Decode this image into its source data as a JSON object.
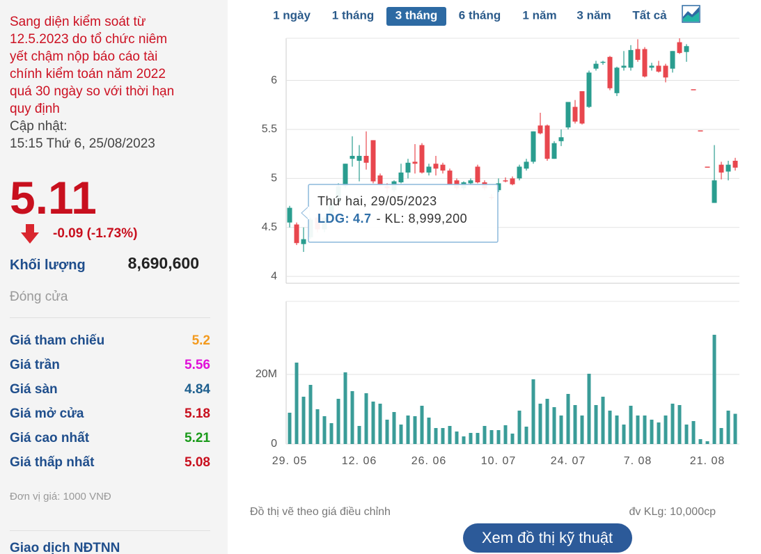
{
  "sidebar": {
    "notice_lines": [
      "Sang diện kiểm soát từ",
      "12.5.2023 do tổ chức niêm",
      "yết chậm nộp báo cáo tài",
      "chính kiểm toán năm 2022",
      "quá 30 ngày so với thời hạn",
      "quy định"
    ],
    "update_label": "Cập nhật:",
    "update_time": "15:15 Thứ 6, 25/08/2023",
    "price": "5.11",
    "change": "-0.09 (-1.73%)",
    "volume_label": "Khối lượng",
    "volume": "8,690,600",
    "status": "Đóng cửa",
    "stats": [
      {
        "label": "Giá tham chiếu",
        "value": "5.2",
        "color": "#f39a1e"
      },
      {
        "label": "Giá trần",
        "value": "5.56",
        "color": "#e010d8"
      },
      {
        "label": "Giá sàn",
        "value": "4.84",
        "color": "#1e5f8e"
      },
      {
        "label": "Giá mở cửa",
        "value": "5.18",
        "color": "#c8101e"
      },
      {
        "label": "Giá cao nhất",
        "value": "5.21",
        "color": "#1a9a1a"
      },
      {
        "label": "Giá thấp nhất",
        "value": "5.08",
        "color": "#c8101e"
      }
    ],
    "unit_note": "Đơn vị giá: 1000 VNĐ",
    "section": "Giao dịch NĐTNN"
  },
  "range_tabs": [
    "1 ngày",
    "1 tháng",
    "3 tháng",
    "6 tháng",
    "1 năm",
    "3 năm",
    "Tất cả"
  ],
  "active_tab": 2,
  "tooltip": {
    "date": "Thứ hai, 29/05/2023",
    "symbol_label": "LDG:",
    "volume_label": "- KL: 8,999,200"
  },
  "notes": {
    "left": "Đồ thị vẽ theo giá điều chỉnh",
    "right": "đv KLg: 10,000cp"
  },
  "button": "Xem đồ thị kỹ thuật",
  "chart_data": [
    {
      "type": "candlestick",
      "up_color": "#2a9d8f",
      "down_color": "#e8474e",
      "ylim": [
        3.93,
        6.43
      ],
      "yticks": [
        4,
        4.5,
        5,
        5.5,
        6
      ],
      "grid": true,
      "open": [
        4.55,
        4.53,
        4.33,
        4.4,
        4.6,
        4.48,
        4.6,
        4.75,
        4.92,
        5.2,
        5.18,
        5.23,
        5.39,
        5.03,
        4.92,
        4.88,
        4.96,
        5.06,
        5.17,
        5.34,
        5.06,
        5.15,
        5.14,
        5.08,
        4.98,
        4.9,
        4.95,
        5.12,
        4.96,
        4.81,
        4.88,
        4.98,
        5.0,
        5.0,
        5.1,
        5.17,
        5.54,
        5.54,
        5.2,
        5.38,
        5.52,
        5.73,
        5.89,
        5.73,
        6.12,
        6.18,
        6.24,
        5.87,
        6.13,
        6.13,
        6.32,
        6.32,
        6.13,
        6.15,
        6.15,
        6.12,
        6.39,
        6.29,
        5.91,
        5.49,
        5.12,
        4.75,
        5.14,
        5.07,
        5.18
      ],
      "high": [
        4.72,
        4.55,
        4.5,
        4.6,
        4.65,
        4.62,
        4.8,
        4.95,
        5.15,
        5.43,
        5.34,
        5.48,
        5.39,
        5.05,
        4.95,
        4.98,
        5.15,
        5.2,
        5.35,
        5.36,
        5.15,
        5.23,
        5.16,
        5.1,
        5.0,
        4.97,
        5.0,
        5.14,
        4.98,
        4.84,
        5.0,
        5.01,
        5.02,
        5.14,
        5.2,
        5.48,
        5.67,
        5.55,
        5.38,
        5.5,
        5.78,
        5.8,
        5.89,
        6.1,
        6.2,
        6.2,
        6.25,
        6.14,
        6.3,
        6.36,
        6.42,
        6.34,
        6.18,
        6.2,
        6.17,
        6.3,
        6.43,
        6.37,
        5.91,
        5.49,
        5.12,
        5.34,
        5.17,
        5.18,
        5.21
      ],
      "low": [
        4.5,
        4.32,
        4.25,
        4.38,
        4.45,
        4.45,
        4.55,
        4.7,
        4.9,
        5.12,
        4.97,
        5.09,
        4.95,
        4.92,
        4.85,
        4.86,
        4.95,
        5.0,
        5.05,
        5.05,
        5.03,
        5.03,
        5.05,
        4.93,
        4.88,
        4.88,
        4.93,
        4.95,
        4.88,
        4.78,
        4.86,
        4.96,
        4.93,
        4.98,
        5.08,
        5.15,
        5.45,
        5.18,
        5.2,
        5.33,
        5.5,
        5.56,
        5.55,
        5.72,
        6.1,
        6.16,
        5.9,
        5.84,
        6.1,
        6.1,
        6.19,
        6.03,
        6.1,
        6.08,
        5.98,
        6.08,
        6.27,
        6.19,
        5.91,
        5.49,
        5.12,
        4.75,
        4.99,
        4.98,
        5.08
      ],
      "close": [
        4.7,
        4.34,
        4.38,
        4.58,
        4.48,
        4.6,
        4.75,
        4.92,
        5.15,
        5.23,
        5.23,
        5.16,
        4.97,
        4.94,
        4.9,
        4.97,
        5.06,
        5.16,
        5.15,
        5.06,
        5.12,
        5.1,
        5.08,
        4.94,
        4.9,
        4.96,
        4.98,
        4.96,
        4.9,
        4.81,
        4.95,
        4.98,
        4.94,
        5.12,
        5.17,
        5.48,
        5.46,
        5.2,
        5.36,
        5.42,
        5.78,
        5.58,
        5.56,
        6.08,
        6.17,
        6.19,
        5.92,
        6.13,
        6.15,
        6.31,
        6.21,
        6.04,
        6.15,
        6.09,
        6.03,
        6.3,
        6.28,
        6.35,
        5.91,
        5.49,
        5.12,
        4.98,
        5.06,
        5.14,
        5.11
      ]
    },
    {
      "type": "bar",
      "color": "#3a9c98",
      "ylim": [
        0,
        41000000
      ],
      "yticks": [
        0,
        {
          "value": 20000000,
          "label": "20M"
        }
      ],
      "grid": true,
      "categories": [
        "29. 05",
        null,
        null,
        null,
        null,
        null,
        null,
        null,
        null,
        null,
        "12. 06",
        null,
        null,
        null,
        null,
        null,
        null,
        null,
        null,
        null,
        "26. 06",
        null,
        null,
        null,
        null,
        null,
        null,
        null,
        null,
        null,
        "10. 07",
        null,
        null,
        null,
        null,
        null,
        null,
        null,
        null,
        null,
        "24. 07",
        null,
        null,
        null,
        null,
        null,
        null,
        null,
        null,
        null,
        "7. 08",
        null,
        null,
        null,
        null,
        null,
        null,
        null,
        null,
        null,
        "21. 08",
        null,
        null,
        null,
        null
      ],
      "values": [
        8999200,
        23400000,
        13600000,
        17000000,
        10000000,
        8000000,
        6000000,
        13000000,
        20600000,
        15200000,
        5200000,
        14600000,
        12200000,
        11600000,
        7000000,
        9200000,
        5600000,
        8200000,
        8000000,
        11000000,
        7600000,
        4600000,
        4600000,
        5200000,
        3600000,
        2200000,
        3200000,
        3200000,
        5200000,
        4000000,
        4000000,
        5400000,
        3000000,
        9600000,
        5000000,
        18600000,
        11600000,
        13000000,
        10600000,
        8200000,
        14400000,
        11200000,
        8200000,
        20200000,
        11200000,
        13600000,
        9600000,
        8200000,
        5600000,
        11000000,
        8200000,
        8200000,
        7000000,
        6200000,
        8200000,
        11600000,
        11200000,
        5600000,
        6600000,
        1400000,
        800000,
        31400000,
        4600000,
        9600000,
        8690600
      ]
    }
  ]
}
